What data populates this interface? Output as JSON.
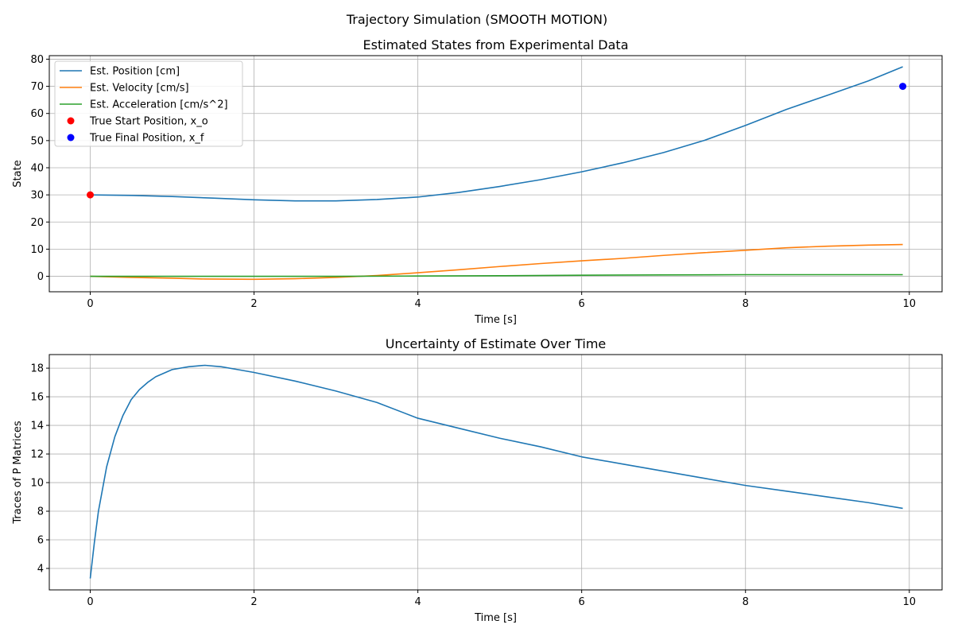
{
  "figure": {
    "suptitle": "Trajectory Simulation (SMOOTH MOTION)"
  },
  "colors": {
    "position": "#1f77b4",
    "velocity": "#ff7f0e",
    "acceleration": "#2ca02c",
    "start": "#ff0000",
    "final": "#0000ff",
    "grid": "#b0b0b0"
  },
  "chart_data": [
    {
      "type": "line",
      "title": "Estimated States from Experimental Data",
      "xlabel": "Time [s]",
      "ylabel": "State",
      "xlim": [
        -0.5,
        10.4
      ],
      "ylim": [
        -5.7,
        81.3
      ],
      "xticks": [
        0,
        2,
        4,
        6,
        8,
        10
      ],
      "xtick_labels": [
        "0",
        "2",
        "4",
        "6",
        "8",
        "10"
      ],
      "yticks": [
        0,
        10,
        20,
        30,
        40,
        50,
        60,
        70,
        80
      ],
      "ytick_labels": [
        "0",
        "10",
        "20",
        "30",
        "40",
        "50",
        "60",
        "70",
        "80"
      ],
      "grid": true,
      "legend_position": "upper-left",
      "series": [
        {
          "name": "Est. Position [cm]",
          "kind": "line",
          "color": "#1f77b4",
          "x": [
            0,
            0.5,
            1,
            1.5,
            2,
            2.5,
            3,
            3.5,
            4,
            4.5,
            5,
            5.5,
            6,
            6.5,
            7,
            7.5,
            8,
            8.5,
            9,
            9.5,
            9.92
          ],
          "y": [
            30,
            29.8,
            29.4,
            28.8,
            28.2,
            27.8,
            27.8,
            28.3,
            29.2,
            30.9,
            33.1,
            35.6,
            38.5,
            41.8,
            45.6,
            50.1,
            55.6,
            61.5,
            66.7,
            72.0,
            77.2
          ]
        },
        {
          "name": "Est. Velocity [cm/s]",
          "kind": "line",
          "color": "#ff7f0e",
          "x": [
            0,
            0.5,
            1,
            1.4,
            2,
            2.5,
            3,
            3.5,
            4,
            4.5,
            5,
            5.5,
            6,
            6.5,
            7,
            7.5,
            8,
            8.5,
            9,
            9.5,
            9.92
          ],
          "y": [
            0,
            -0.4,
            -0.7,
            -1.0,
            -1.1,
            -0.9,
            -0.4,
            0.3,
            1.3,
            2.4,
            3.6,
            4.7,
            5.7,
            6.6,
            7.7,
            8.7,
            9.6,
            10.5,
            11.1,
            11.5,
            11.7
          ]
        },
        {
          "name": "Est. Acceleration [cm/s^2]",
          "kind": "line",
          "color": "#2ca02c",
          "x": [
            0,
            1,
            2,
            3,
            4,
            5,
            6,
            7,
            8,
            9,
            9.92
          ],
          "y": [
            0,
            0,
            0,
            0,
            0.1,
            0.2,
            0.4,
            0.5,
            0.6,
            0.6,
            0.6
          ]
        },
        {
          "name": "True Start Position, x_o",
          "kind": "scatter",
          "color": "#ff0000",
          "x": [
            0
          ],
          "y": [
            30
          ]
        },
        {
          "name": "True Final Position, x_f",
          "kind": "scatter",
          "color": "#0000ff",
          "x": [
            9.92
          ],
          "y": [
            70
          ]
        }
      ]
    },
    {
      "type": "line",
      "title": "Uncertainty of Estimate Over Time",
      "xlabel": "Time [s]",
      "ylabel": "Traces of P Matrices",
      "xlim": [
        -0.5,
        10.4
      ],
      "ylim": [
        2.5,
        18.95
      ],
      "xticks": [
        0,
        2,
        4,
        6,
        8,
        10
      ],
      "xtick_labels": [
        "0",
        "2",
        "4",
        "6",
        "8",
        "10"
      ],
      "yticks": [
        4,
        6,
        8,
        10,
        12,
        14,
        16,
        18
      ],
      "ytick_labels": [
        "4",
        "6",
        "8",
        "10",
        "12",
        "14",
        "16",
        "18"
      ],
      "grid": true,
      "series": [
        {
          "kind": "line",
          "color": "#1f77b4",
          "x": [
            0,
            0.05,
            0.1,
            0.2,
            0.3,
            0.4,
            0.5,
            0.6,
            0.7,
            0.8,
            1.0,
            1.2,
            1.4,
            1.6,
            1.8,
            2.0,
            2.5,
            3,
            3.5,
            4,
            4.5,
            5,
            5.5,
            6,
            6.5,
            7,
            7.5,
            8,
            8.5,
            9,
            9.5,
            9.92
          ],
          "y": [
            3.3,
            5.8,
            8.0,
            11.1,
            13.2,
            14.7,
            15.8,
            16.5,
            17.0,
            17.4,
            17.9,
            18.1,
            18.2,
            18.1,
            17.9,
            17.7,
            17.1,
            16.4,
            15.6,
            14.5,
            13.8,
            13.1,
            12.5,
            11.8,
            11.3,
            10.8,
            10.3,
            9.8,
            9.4,
            9.0,
            8.6,
            8.2
          ]
        }
      ]
    }
  ]
}
